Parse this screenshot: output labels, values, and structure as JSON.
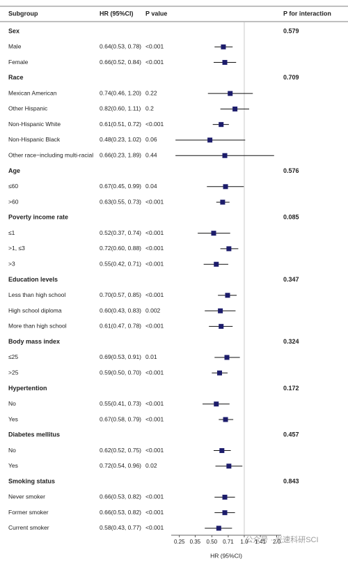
{
  "chart_data": {
    "type": "forest",
    "columns": [
      "Subgroup",
      "HR (95%CI)",
      "P value",
      "P for interaction"
    ],
    "xlabel": "HR (95%CI)",
    "log_scale": true,
    "xlim": [
      0.21,
      2.2
    ],
    "xticks": [
      0.25,
      0.35,
      {
        "value": 0.5,
        "label": "0.50"
      },
      0.71,
      {
        "value": 1,
        "label": "1.0"
      },
      1.41,
      {
        "value": 2,
        "label": "2.0"
      }
    ],
    "ref_line": 1,
    "color": "#1c1c6b",
    "watermark": "公众号 · 光速科研SCI",
    "groups": [
      {
        "name": "Sex",
        "p_interaction": "0.579",
        "rows": [
          {
            "name": "Male",
            "label": "0.64(0.53, 0.78)",
            "hr": 0.64,
            "lo": 0.53,
            "hi": 0.78,
            "p": "<0.001"
          },
          {
            "name": "Female",
            "label": "0.66(0.52, 0.84)",
            "hr": 0.66,
            "lo": 0.52,
            "hi": 0.84,
            "p": "<0.001"
          }
        ]
      },
      {
        "name": "Race",
        "p_interaction": "0.709",
        "rows": [
          {
            "name": "Mexican American",
            "label": "0.74(0.46, 1.20)",
            "hr": 0.74,
            "lo": 0.46,
            "hi": 1.2,
            "p": "0.22"
          },
          {
            "name": "Other Hispanic",
            "label": "0.82(0.60, 1.11)",
            "hr": 0.82,
            "lo": 0.6,
            "hi": 1.11,
            "p": "0.2"
          },
          {
            "name": "Non-Hispanic White",
            "label": "0.61(0.51, 0.72)",
            "hr": 0.61,
            "lo": 0.51,
            "hi": 0.72,
            "p": "<0.001"
          },
          {
            "name": "Non-Hispanic Black",
            "label": "0.48(0.23, 1.02)",
            "hr": 0.48,
            "lo": 0.23,
            "hi": 1.02,
            "p": "0.06"
          },
          {
            "name": "Other race−including multi-racial",
            "label": "0.66(0.23, 1.89)",
            "hr": 0.66,
            "lo": 0.23,
            "hi": 1.89,
            "p": "0.44"
          }
        ]
      },
      {
        "name": "Age",
        "p_interaction": "0.576",
        "rows": [
          {
            "name": "≤60",
            "label": "0.67(0.45, 0.99)",
            "hr": 0.67,
            "lo": 0.45,
            "hi": 0.99,
            "p": "0.04"
          },
          {
            "name": ">60",
            "label": "0.63(0.55, 0.73)",
            "hr": 0.63,
            "lo": 0.55,
            "hi": 0.73,
            "p": "<0.001"
          }
        ]
      },
      {
        "name": "Poverty income rate",
        "p_interaction": "0.085",
        "rows": [
          {
            "name": "≤1",
            "label": "0.52(0.37, 0.74)",
            "hr": 0.52,
            "lo": 0.37,
            "hi": 0.74,
            "p": "<0.001"
          },
          {
            "name": ">1, ≤3",
            "label": "0.72(0.60, 0.88)",
            "hr": 0.72,
            "lo": 0.6,
            "hi": 0.88,
            "p": "<0.001"
          },
          {
            "name": ">3",
            "label": "0.55(0.42, 0.71)",
            "hr": 0.55,
            "lo": 0.42,
            "hi": 0.71,
            "p": "<0.001"
          }
        ]
      },
      {
        "name": "Education levels",
        "p_interaction": "0.347",
        "rows": [
          {
            "name": "Less than high school",
            "label": "0.70(0.57, 0.85)",
            "hr": 0.7,
            "lo": 0.57,
            "hi": 0.85,
            "p": "<0.001"
          },
          {
            "name": "High school diploma",
            "label": "0.60(0.43, 0.83)",
            "hr": 0.6,
            "lo": 0.43,
            "hi": 0.83,
            "p": "0.002"
          },
          {
            "name": "More than high school",
            "label": "0.61(0.47, 0.78)",
            "hr": 0.61,
            "lo": 0.47,
            "hi": 0.78,
            "p": "<0.001"
          }
        ]
      },
      {
        "name": "Body mass index",
        "p_interaction": "0.324",
        "rows": [
          {
            "name": "≤25",
            "label": "0.69(0.53, 0.91)",
            "hr": 0.69,
            "lo": 0.53,
            "hi": 0.91,
            "p": "0.01"
          },
          {
            "name": ">25",
            "label": "0.59(0.50, 0.70)",
            "hr": 0.59,
            "lo": 0.5,
            "hi": 0.7,
            "p": "<0.001"
          }
        ]
      },
      {
        "name": "Hypertention",
        "p_interaction": "0.172",
        "rows": [
          {
            "name": "No",
            "label": "0.55(0.41, 0.73)",
            "hr": 0.55,
            "lo": 0.41,
            "hi": 0.73,
            "p": "<0.001"
          },
          {
            "name": "Yes",
            "label": "0.67(0.58, 0.79)",
            "hr": 0.67,
            "lo": 0.58,
            "hi": 0.79,
            "p": "<0.001"
          }
        ]
      },
      {
        "name": "Diabetes mellitus",
        "p_interaction": "0.457",
        "rows": [
          {
            "name": "No",
            "label": "0.62(0.52, 0.75)",
            "hr": 0.62,
            "lo": 0.52,
            "hi": 0.75,
            "p": "<0.001"
          },
          {
            "name": "Yes",
            "label": "0.72(0.54, 0.96)",
            "hr": 0.72,
            "lo": 0.54,
            "hi": 0.96,
            "p": "0.02"
          }
        ]
      },
      {
        "name": "Smoking status",
        "p_interaction": "0.843",
        "rows": [
          {
            "name": "Never smoker",
            "label": "0.66(0.53, 0.82)",
            "hr": 0.66,
            "lo": 0.53,
            "hi": 0.82,
            "p": "<0.001"
          },
          {
            "name": "Former smoker",
            "label": "0.66(0.53, 0.82)",
            "hr": 0.66,
            "lo": 0.53,
            "hi": 0.82,
            "p": "<0.001"
          },
          {
            "name": "Current smoker",
            "label": "0.58(0.43, 0.77)",
            "hr": 0.58,
            "lo": 0.43,
            "hi": 0.77,
            "p": "<0.001"
          }
        ]
      }
    ]
  }
}
